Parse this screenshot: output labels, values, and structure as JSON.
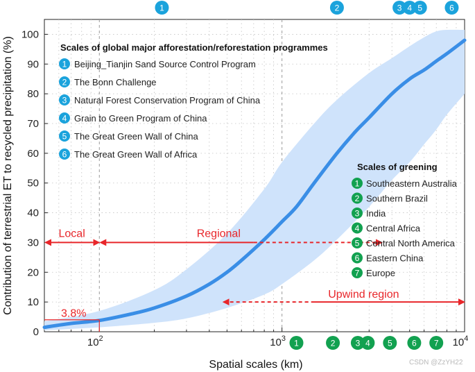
{
  "chart_data": {
    "type": "line",
    "xscale": "log",
    "xlim": [
      50,
      10000
    ],
    "ylim": [
      0,
      105
    ],
    "xlabel": "Spatial scales (km)",
    "ylabel": "Contribution of terrestrial ET to recycled precipitation (%)",
    "x_ticks": [
      {
        "value": 100,
        "label_base": "10",
        "label_exp": "2"
      },
      {
        "value": 1000,
        "label_base": "10",
        "label_exp": "3"
      },
      {
        "value": 10000,
        "label_base": "10",
        "label_exp": "4"
      }
    ],
    "y_ticks": [
      {
        "value": 0,
        "label": "0"
      },
      {
        "value": 10,
        "label": "10"
      },
      {
        "value": 20,
        "label": "20"
      },
      {
        "value": 30,
        "label": "30"
      },
      {
        "value": 40,
        "label": "40"
      },
      {
        "value": 50,
        "label": "50"
      },
      {
        "value": 60,
        "label": "60"
      },
      {
        "value": 70,
        "label": "70"
      },
      {
        "value": 80,
        "label": "80"
      },
      {
        "value": 90,
        "label": "90"
      },
      {
        "value": 100,
        "label": "100"
      }
    ],
    "series": [
      {
        "name": "mean",
        "color": "#3a8ee6",
        "x": [
          50,
          70,
          100,
          150,
          200,
          300,
          400,
          500,
          600,
          800,
          1000,
          1200,
          1500,
          2000,
          2500,
          3000,
          4000,
          5000,
          6000,
          7000,
          8000,
          10000
        ],
        "y": [
          1.5,
          2.8,
          3.8,
          6.0,
          8.0,
          12.0,
          16.0,
          20.0,
          24.0,
          31.0,
          37.0,
          42.0,
          50.0,
          60.0,
          67.0,
          72.0,
          80.0,
          85.0,
          88.0,
          91.0,
          93.5,
          98.0
        ]
      }
    ],
    "band": {
      "color": "#cfe3fb",
      "x": [
        50,
        100,
        200,
        300,
        500,
        800,
        1000,
        1500,
        2000,
        3000,
        4000,
        5000,
        6000,
        7000,
        8000,
        10000
      ],
      "upper": [
        3.5,
        7.0,
        14.0,
        21.0,
        33.0,
        48.0,
        57.0,
        70.0,
        78.0,
        87.0,
        92.0,
        96.0,
        99.0,
        101.0,
        101.5,
        101.5
      ],
      "lower": [
        0.5,
        1.5,
        3.0,
        4.5,
        8.0,
        12.5,
        16.0,
        24.0,
        31.0,
        42.0,
        51.0,
        57.0,
        63.0,
        68.0,
        73.0,
        80.0
      ]
    },
    "annotations": {
      "point_label": "3.8%",
      "point": {
        "x": 100,
        "y": 3.8
      },
      "local": {
        "label": "Local",
        "y": 30,
        "x_from": 50,
        "x_to": 100
      },
      "regional": {
        "label": "Regional",
        "y": 30,
        "x_from": 100,
        "x_solid_to": 700,
        "x_dashed_to": 3500
      },
      "upwind": {
        "label": "Upwind region",
        "y": 10,
        "x_from": 480,
        "x_dashed_to": 1500,
        "x_to": 10000
      }
    },
    "afforestation_legend": {
      "title": "Scales of global major afforestation/reforestation programmes",
      "color": "#1ba3dc",
      "items": [
        {
          "num": "1",
          "label": "Beijing_Tianjin Sand Source Control Program",
          "x": 220
        },
        {
          "num": "2",
          "label": "The Bonn Challenge",
          "x": 2000
        },
        {
          "num": "3",
          "label": "Natural Forest Conservation Program of China",
          "x": 4400
        },
        {
          "num": "4",
          "label": "Grain to Green Program of China",
          "x": 5000
        },
        {
          "num": "5",
          "label": "The Great Green Wall of China",
          "x": 5700
        },
        {
          "num": "6",
          "label": "The Great Green Wall of Africa",
          "x": 8500
        }
      ]
    },
    "greening_legend": {
      "title": "Scales of greening",
      "color": "#12a150",
      "items": [
        {
          "num": "1",
          "label": "Southeastern Australia",
          "x": 1200
        },
        {
          "num": "2",
          "label": "Southern Brazil",
          "x": 1900
        },
        {
          "num": "3",
          "label": "India",
          "x": 2600
        },
        {
          "num": "4",
          "label": "Central Africa",
          "x": 2950
        },
        {
          "num": "5",
          "label": "Central North America",
          "x": 3900
        },
        {
          "num": "6",
          "label": "Eastern China",
          "x": 5300
        },
        {
          "num": "7",
          "label": "Europe",
          "x": 7000
        }
      ]
    },
    "watermark": "CSDN @ZzYH22"
  }
}
